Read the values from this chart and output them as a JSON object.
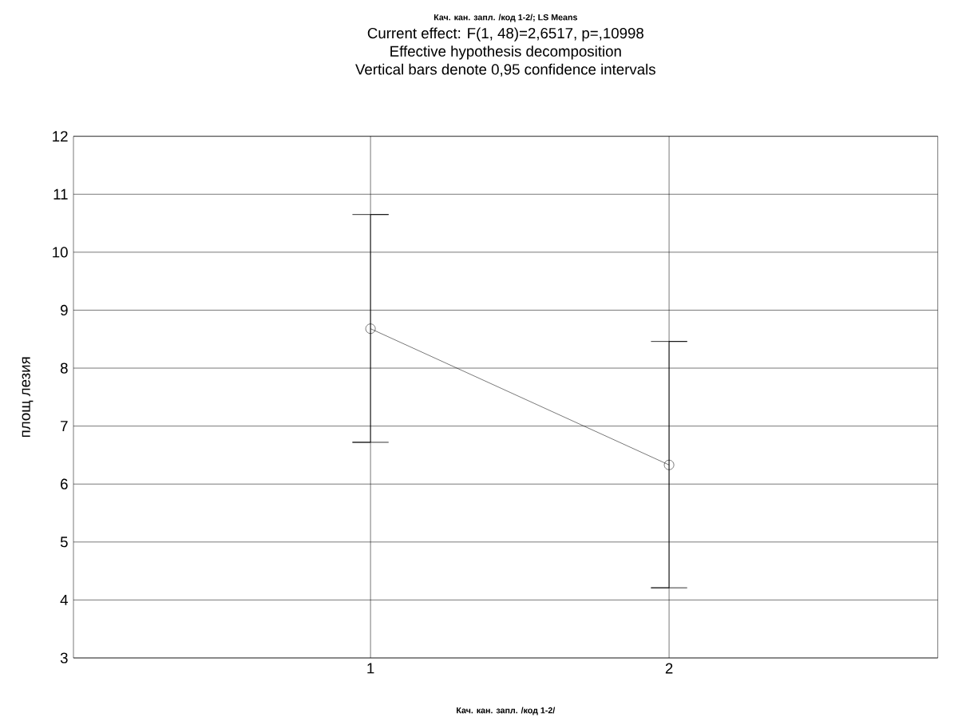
{
  "chart_data": {
    "type": "line",
    "title": "Кач. кан. запл. /код 1-2/; LS Means",
    "subtitle": "Current effect: F(1, 48)=2,6517, p=,10998",
    "annotations": [
      "Effective hypothesis decomposition",
      "Vertical bars denote 0,95 confidence intervals"
    ],
    "xlabel": "Кач. кан. запл. /код 1-2/",
    "ylabel": "площ лезия",
    "categories": [
      "1",
      "2"
    ],
    "series": [
      {
        "color": "#000000",
        "values": [
          8.68,
          6.33
        ],
        "errors": [
          [
            6.72,
            10.65
          ],
          [
            4.21,
            8.46
          ]
        ]
      }
    ],
    "ylim": [
      3,
      12
    ],
    "yticks": [
      3,
      4,
      5,
      6,
      7,
      8,
      9,
      10,
      11,
      12
    ],
    "grid": true,
    "marker": "circle",
    "line_style": "solid"
  }
}
